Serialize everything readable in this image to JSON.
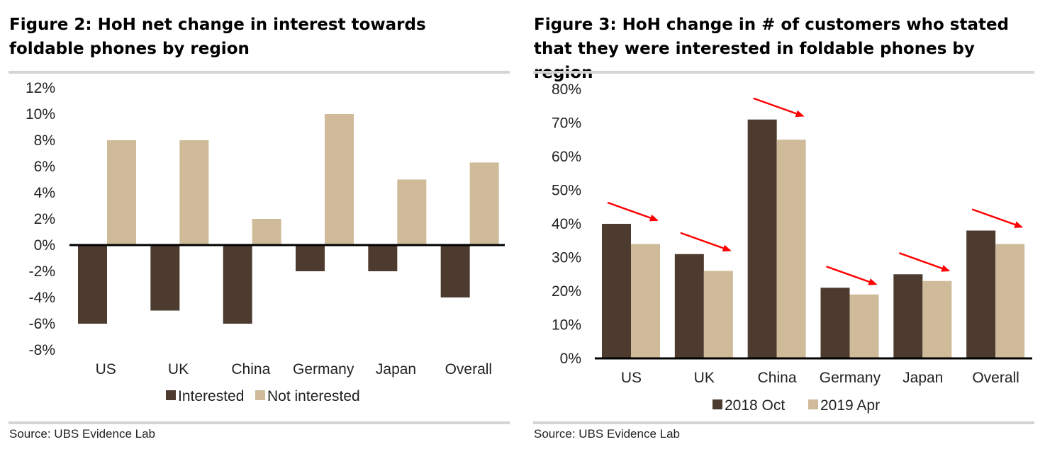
{
  "figures": [
    {
      "title": "Figure 2: HoH net change in interest towards foldable phones by region",
      "source": "Source: UBS Evidence Lab"
    },
    {
      "title": "Figure 3: HoH change in # of customers who stated that they were interested in foldable phones by region",
      "source": "Source: UBS Evidence Lab"
    }
  ],
  "chart_data": [
    {
      "type": "bar",
      "categories": [
        "US",
        "UK",
        "China",
        "Germany",
        "Japan",
        "Overall"
      ],
      "series": [
        {
          "name": "Interested",
          "values": [
            -6,
            -5,
            -6,
            -2,
            -2,
            -4
          ],
          "color": "#4d3b2f"
        },
        {
          "name": "Not interested",
          "values": [
            8,
            8,
            2,
            10,
            5,
            6.3
          ],
          "color": "#cfbb99"
        }
      ],
      "ylim": [
        -8,
        12
      ],
      "yticks": [
        12,
        10,
        8,
        6,
        4,
        2,
        0,
        -2,
        -4,
        -6,
        -8
      ],
      "ytick_labels": [
        "12%",
        "10%",
        "8%",
        "6%",
        "4%",
        "2%",
        "0%",
        "-2%",
        "-4%",
        "-6%",
        "-8%"
      ],
      "legend": "bottom",
      "grid": false
    },
    {
      "type": "bar",
      "categories": [
        "US",
        "UK",
        "China",
        "Germany",
        "Japan",
        "Overall"
      ],
      "series": [
        {
          "name": "2018 Oct",
          "values": [
            40,
            31,
            71,
            21,
            25,
            38
          ],
          "color": "#4d3b2f"
        },
        {
          "name": "2019 Apr",
          "values": [
            34,
            26,
            65,
            19,
            23,
            34
          ],
          "color": "#cfbb99"
        }
      ],
      "ylim": [
        0,
        80
      ],
      "yticks": [
        80,
        70,
        60,
        50,
        40,
        30,
        20,
        10,
        0
      ],
      "ytick_labels": [
        "80%",
        "70%",
        "60%",
        "50%",
        "40%",
        "30%",
        "20%",
        "10%",
        "0%"
      ],
      "legend": "bottom",
      "grid": false,
      "annotations": "red-arrows-pointing-down-right-above-each-category"
    }
  ]
}
